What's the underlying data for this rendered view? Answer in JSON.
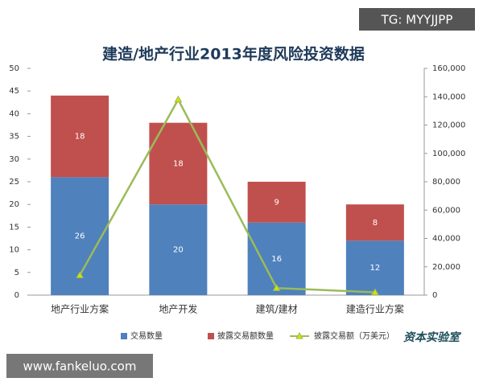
{
  "chart_data": {
    "type": "bar+line",
    "title": "建造/地产行业2013年度风险投资数据",
    "categories": [
      "地产行业方案",
      "地产开发",
      "建筑/建材",
      "建造行业方案"
    ],
    "stacked": true,
    "series": [
      {
        "name": "交易数量",
        "color": "#4f81bd",
        "type": "bar",
        "values": [
          26,
          20,
          16,
          12
        ]
      },
      {
        "name": "披露交易额数量",
        "color": "#c0504d",
        "type": "bar",
        "values": [
          18,
          18,
          9,
          8
        ]
      },
      {
        "name": "披露交易额（万美元）",
        "color": "#9bbb59",
        "type": "line",
        "axis": "y2",
        "values": [
          14000,
          138000,
          5000,
          2000
        ]
      }
    ],
    "ylim": [
      0,
      50
    ],
    "yticks": [
      0,
      5,
      10,
      15,
      20,
      25,
      30,
      35,
      40,
      45,
      50
    ],
    "y2lim": [
      0,
      160000
    ],
    "y2ticks": [
      0,
      {
        "value": 20000,
        "label": "20,000"
      },
      {
        "value": 40000,
        "label": "40,000"
      },
      {
        "value": 60000,
        "label": "60,000"
      },
      {
        "value": 80000,
        "label": "80,000"
      },
      {
        "value": 100000,
        "label": "100,000"
      },
      {
        "value": 120000,
        "label": "120,000"
      },
      {
        "value": 140000,
        "label": "140,000"
      },
      {
        "value": 160000,
        "label": "160,000"
      }
    ],
    "legend": "bottom",
    "annotations": [
      "TG: MYYJJPP",
      "www.fankeluo.com",
      "资本实验室"
    ]
  }
}
